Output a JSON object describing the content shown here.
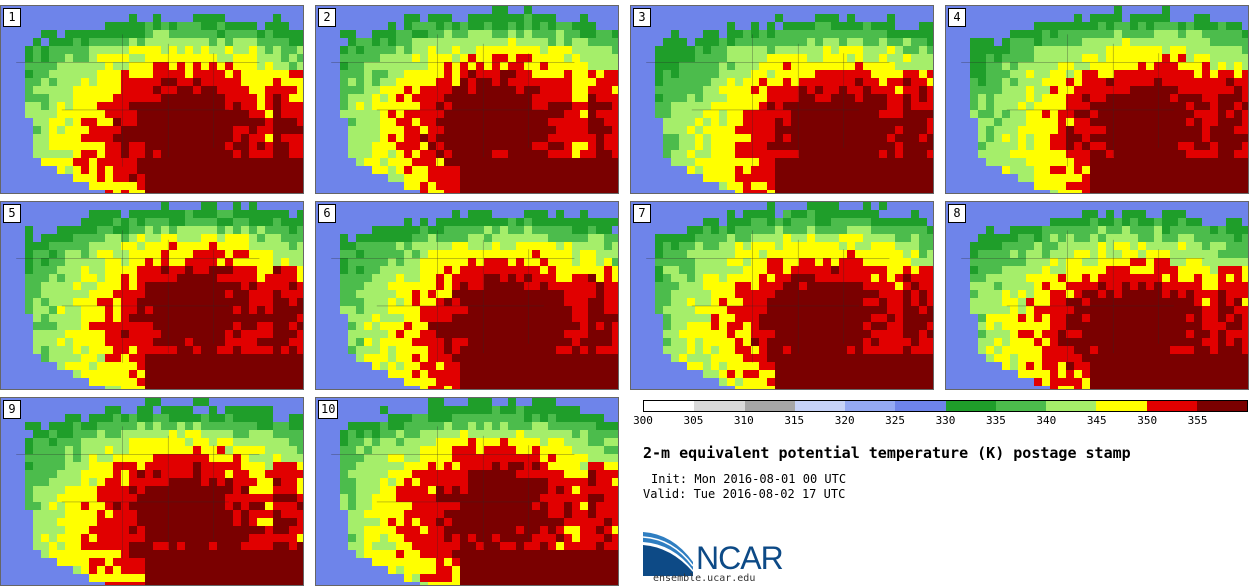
{
  "panels": [
    {
      "label": "1"
    },
    {
      "label": "2"
    },
    {
      "label": "3"
    },
    {
      "label": "4"
    },
    {
      "label": "5"
    },
    {
      "label": "6"
    },
    {
      "label": "7"
    },
    {
      "label": "8"
    },
    {
      "label": "9"
    },
    {
      "label": "10"
    }
  ],
  "colorbar": {
    "ticks": [
      "300",
      "305",
      "310",
      "315",
      "320",
      "325",
      "330",
      "335",
      "340",
      "345",
      "350",
      "355"
    ],
    "colors": [
      "#ffffff",
      "#d9d9d9",
      "#a6a6a6",
      "#c6d2f7",
      "#94a9f3",
      "#6e84ea",
      "#1f9e2a",
      "#4cbc4c",
      "#a5ee6a",
      "#ffff00",
      "#e10000",
      "#7a0000"
    ]
  },
  "title": "2-m equivalent potential temperature (K) postage stamp",
  "init": "Init: Mon 2016-08-01 00 UTC",
  "valid": "Valid: Tue 2016-08-02 17 UTC",
  "logo_text": "NCAR",
  "url": "ensemble.ucar.edu"
}
